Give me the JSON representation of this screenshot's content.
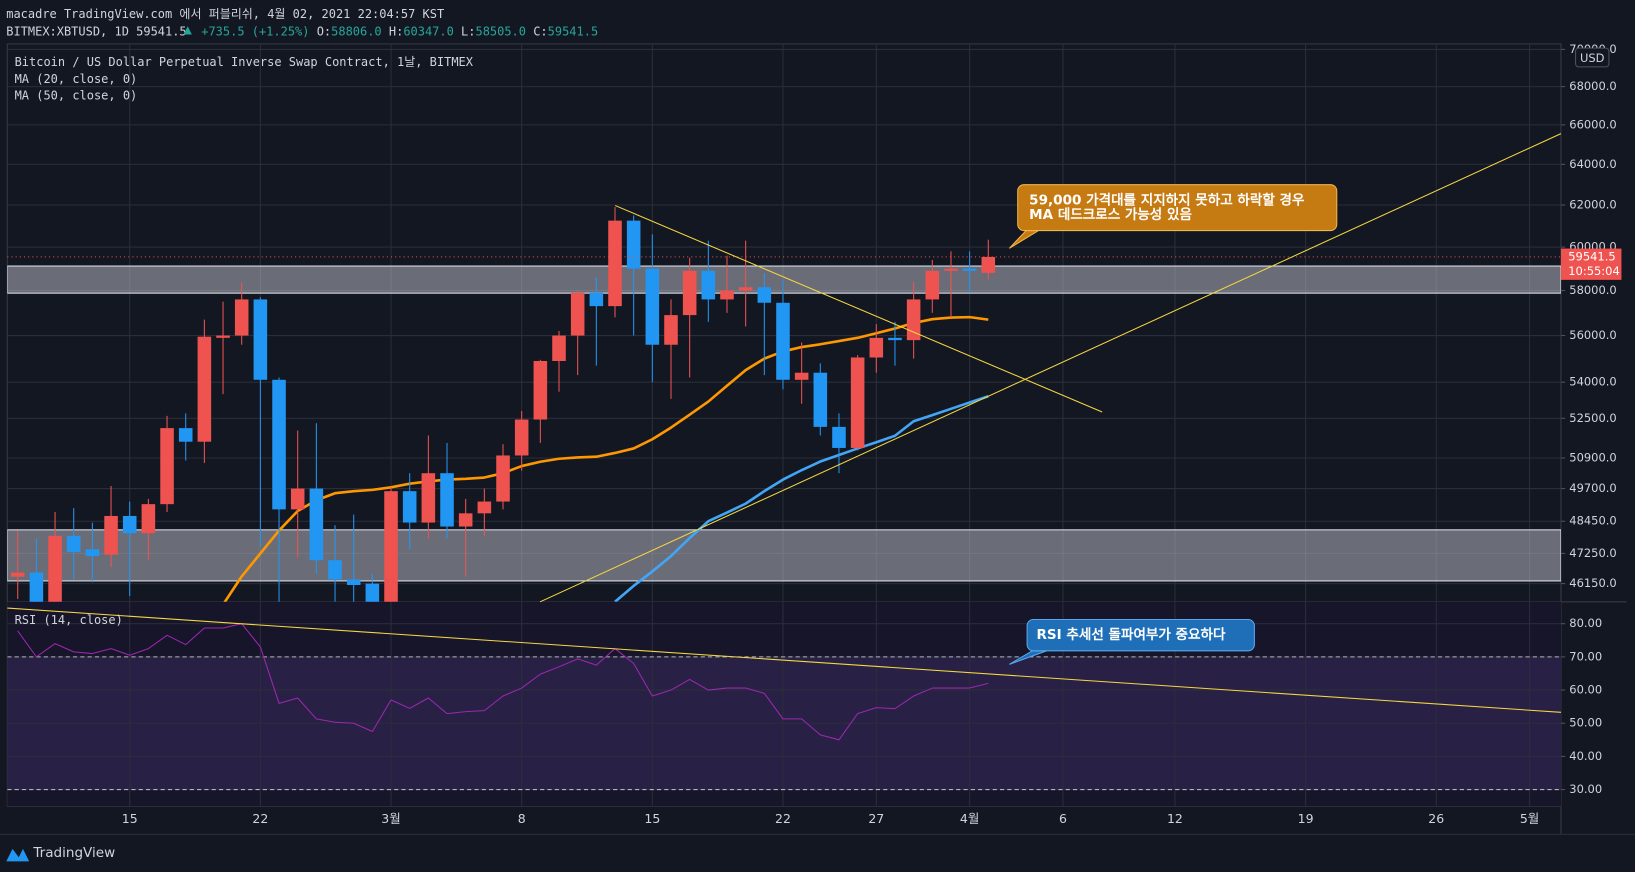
{
  "header": {
    "publisher": "macadre TradingView.com 에서 퍼블리쉬, 4월 02, 2021 22:04:57 KST",
    "symbol": "BITMEX:XBTUSD, 1D",
    "last": "59541.5",
    "change": "+735.5 (+1.25%)",
    "ohlc": [
      {
        "label": "O:",
        "value": "58806.0"
      },
      {
        "label": "H:",
        "value": "60347.0"
      },
      {
        "label": "L:",
        "value": "58505.0"
      },
      {
        "label": "C:",
        "value": "59541.5"
      }
    ]
  },
  "footer": {
    "brand": "TradingView"
  },
  "chart_data": [
    {
      "type": "candlestick",
      "title": "Bitcoin / US Dollar Perpetual Inverse Swap Contract, 1날, BITMEX",
      "currency": "USD",
      "categories": [
        null,
        null,
        null,
        null,
        null,
        null,
        "15",
        null,
        null,
        null,
        null,
        null,
        null,
        "22",
        null,
        null,
        null,
        null,
        null,
        null,
        "3월",
        null,
        null,
        null,
        null,
        null,
        null,
        "8",
        null,
        null,
        null,
        null,
        null,
        null,
        "15",
        null,
        null,
        null,
        null,
        null,
        null,
        "22",
        null,
        null,
        null,
        null,
        "27",
        null,
        null,
        null,
        null,
        "4월",
        null,
        null,
        null,
        null,
        "6",
        null,
        null,
        null,
        null,
        null,
        "12",
        null,
        null,
        null,
        null,
        null,
        null,
        "19",
        null,
        null,
        null,
        null,
        null,
        null,
        "26",
        null,
        null,
        null,
        null,
        "5월",
        null
      ],
      "open": [
        46400,
        46550,
        44800,
        47900,
        47400,
        47200,
        48650,
        48000,
        49100,
        52100,
        51550,
        55900,
        56000,
        57600,
        54100,
        48900,
        49700,
        47000,
        46300,
        46150,
        45200,
        49600,
        48400,
        50300,
        48250,
        48750,
        49200,
        51000,
        52450,
        54900,
        56000,
        57900,
        57300,
        61250,
        59000,
        55600,
        56900,
        58900,
        57600,
        58000,
        58150,
        57450,
        54100,
        54400,
        52150,
        51300,
        55050,
        55900,
        55800,
        57600,
        58900,
        59000,
        58806,
        null,
        null,
        null,
        null,
        null,
        null,
        null,
        null,
        null,
        null,
        null,
        null,
        null,
        null,
        null,
        null,
        null,
        null,
        null,
        null,
        null,
        null,
        null,
        null,
        null,
        null,
        null,
        null,
        null,
        null
      ],
      "high": [
        48100,
        47800,
        48800,
        48950,
        48400,
        49800,
        49200,
        49300,
        52600,
        52700,
        56700,
        57500,
        58350,
        57700,
        54200,
        52000,
        52300,
        48300,
        48700,
        46500,
        49750,
        50300,
        51800,
        51500,
        49300,
        49700,
        51450,
        52800,
        54950,
        56200,
        58000,
        58600,
        61900,
        61500,
        60600,
        57600,
        59500,
        60300,
        59600,
        60300,
        58800,
        58500,
        55700,
        54800,
        52700,
        55150,
        56500,
        56600,
        58400,
        59400,
        59800,
        59800,
        60347,
        null,
        null,
        null,
        null,
        null,
        null,
        null,
        null,
        null,
        null,
        null,
        null,
        null,
        null,
        null,
        null,
        null,
        null,
        null,
        null,
        null,
        null,
        null,
        null,
        null,
        null,
        null,
        null,
        null,
        null
      ],
      "low": [
        45600,
        43700,
        43800,
        46300,
        46200,
        46750,
        45700,
        47000,
        48800,
        50800,
        50700,
        53500,
        55600,
        47500,
        45000,
        47100,
        46500,
        45500,
        44500,
        43500,
        44900,
        47400,
        47800,
        47800,
        46400,
        47900,
        48900,
        50400,
        51500,
        53600,
        54300,
        54700,
        56800,
        56000,
        54000,
        53300,
        54200,
        56600,
        57000,
        56400,
        54300,
        53700,
        53100,
        51800,
        50300,
        51200,
        54400,
        54700,
        55000,
        57000,
        56800,
        57900,
        58505,
        null,
        null,
        null,
        null,
        null,
        null,
        null,
        null,
        null,
        null,
        null,
        null,
        null,
        null,
        null,
        null,
        null,
        null,
        null,
        null,
        null,
        null,
        null,
        null,
        null,
        null,
        null,
        null,
        null,
        null
      ],
      "close": [
        46550,
        44800,
        47900,
        47300,
        47150,
        48650,
        48000,
        49100,
        52100,
        51550,
        55950,
        56000,
        57600,
        54100,
        48900,
        49700,
        47000,
        46300,
        46100,
        45200,
        49600,
        48400,
        50300,
        48250,
        48750,
        49200,
        51000,
        52450,
        54900,
        56000,
        57900,
        57300,
        61250,
        59000,
        55600,
        56900,
        58900,
        57600,
        58000,
        58150,
        57450,
        54100,
        54400,
        52150,
        51300,
        55050,
        55900,
        55800,
        57600,
        58900,
        59000,
        58900,
        59541.5,
        null,
        null,
        null,
        null,
        null,
        null,
        null,
        null,
        null,
        null,
        null,
        null,
        null,
        null,
        null,
        null,
        null,
        null,
        null,
        null,
        null,
        null,
        null,
        null,
        null,
        null,
        null,
        null,
        null,
        null
      ],
      "up_color": "#ef5350",
      "down_color": "#2196f3",
      "series": [
        {
          "name": "MA (20, close, 0)",
          "color": "#ff9800",
          "values": [
            null,
            null,
            null,
            null,
            null,
            null,
            null,
            null,
            null,
            null,
            null,
            45400,
            46410,
            47250,
            48100,
            48840,
            49250,
            49520,
            49600,
            49650,
            49750,
            49890,
            49980,
            50050,
            50080,
            50130,
            50300,
            50580,
            50750,
            50870,
            50920,
            50950,
            51100,
            51280,
            51650,
            52120,
            52650,
            53190,
            53850,
            54510,
            55000,
            55310,
            55500,
            55620,
            55760,
            55900,
            56100,
            56310,
            56550,
            56720,
            56790,
            56810,
            56700,
            null,
            null,
            null,
            null,
            null,
            null,
            null,
            null,
            null,
            null,
            null,
            null,
            null,
            null,
            null,
            null,
            null,
            null,
            null,
            null,
            null,
            null,
            null,
            null,
            null,
            null,
            null,
            null,
            null,
            null
          ]
        },
        {
          "name": "MA (50, close, 0)",
          "color": "#42a5f5",
          "values": [
            null,
            null,
            null,
            null,
            null,
            null,
            null,
            null,
            null,
            null,
            null,
            null,
            null,
            null,
            null,
            null,
            null,
            null,
            null,
            null,
            null,
            null,
            null,
            null,
            null,
            null,
            null,
            null,
            null,
            null,
            null,
            null,
            45500,
            46070,
            46590,
            47150,
            47820,
            48450,
            48780,
            49120,
            49600,
            50050,
            50420,
            50760,
            51020,
            51280,
            51530,
            51790,
            52380,
            52630,
            52890,
            53150,
            53410,
            null,
            null,
            null,
            null,
            null,
            null,
            null,
            null,
            null,
            null,
            null,
            null,
            null,
            null,
            null,
            null,
            null,
            null,
            null,
            null,
            null,
            null,
            null,
            null,
            null,
            null,
            null,
            null,
            null,
            null
          ]
        }
      ],
      "last_price": 59541.5,
      "countdown": "10:55:04",
      "annotations": [
        "59,000 가격대를 지지하지 못하고 하락할 경우",
        "MA 데드크로스 가능성 있음"
      ],
      "log_scale": true,
      "grid": true,
      "ylim": [
        45500,
        70300
      ],
      "yticks": [
        {
          "value": 46150,
          "label": "46150.0"
        },
        {
          "value": 47250,
          "label": "47250.0"
        },
        {
          "value": 48450,
          "label": "48450.0"
        },
        {
          "value": 49700,
          "label": "49700.0"
        },
        {
          "value": 50900,
          "label": "50900.0"
        },
        {
          "value": 52500,
          "label": "52500.0"
        },
        {
          "value": 54000,
          "label": "54000.0"
        },
        {
          "value": 56000,
          "label": "56000.0"
        },
        {
          "value": 58000,
          "label": "58000.0"
        },
        {
          "value": 60000,
          "label": "60000.0"
        },
        {
          "value": 62000,
          "label": "62000.0"
        },
        {
          "value": 64000,
          "label": "64000.0"
        },
        {
          "value": 66000,
          "label": "66000.0"
        },
        {
          "value": 68000,
          "label": "68000.0"
        },
        {
          "value": 70000,
          "label": "70000.0"
        }
      ]
    },
    {
      "type": "line",
      "series": [
        {
          "name": "RSI (14, close)",
          "color": "#9c27b0",
          "values": [
            77.8,
            70,
            74,
            71.5,
            71,
            72.5,
            70.5,
            72.5,
            76.5,
            73.7,
            78.7,
            78.7,
            80,
            73,
            56,
            57.6,
            51.3,
            50.3,
            50,
            47.5,
            57,
            54.5,
            57.6,
            52.9,
            53.5,
            53.8,
            58.2,
            60.6,
            64.8,
            67,
            69.4,
            67.5,
            72.5,
            68,
            58.2,
            60,
            63.2,
            60,
            60.6,
            60.6,
            59,
            51.3,
            51.3,
            46.5,
            45,
            52.9,
            54.7,
            54.4,
            58.2,
            60.6,
            60.6,
            60.6,
            62,
            null,
            null,
            null,
            null,
            null,
            null,
            null,
            null,
            null,
            null,
            null,
            null,
            null,
            null,
            null,
            null,
            null,
            null,
            null,
            null,
            null,
            null,
            null,
            null,
            null,
            null,
            null,
            null,
            null,
            null
          ]
        }
      ],
      "band": [
        30,
        70
      ],
      "annotations": [
        "RSI 추세선 돌파여부가 중요하다"
      ],
      "grid": true,
      "ylim": [
        25,
        86.6
      ],
      "yticks": [
        {
          "value": 30,
          "label": "30.00"
        },
        {
          "value": 40,
          "label": "40.00"
        },
        {
          "value": 50,
          "label": "50.00"
        },
        {
          "value": 60,
          "label": "60.00"
        },
        {
          "value": 70,
          "label": "70.00"
        },
        {
          "value": 80,
          "label": "80.00"
        }
      ]
    }
  ]
}
